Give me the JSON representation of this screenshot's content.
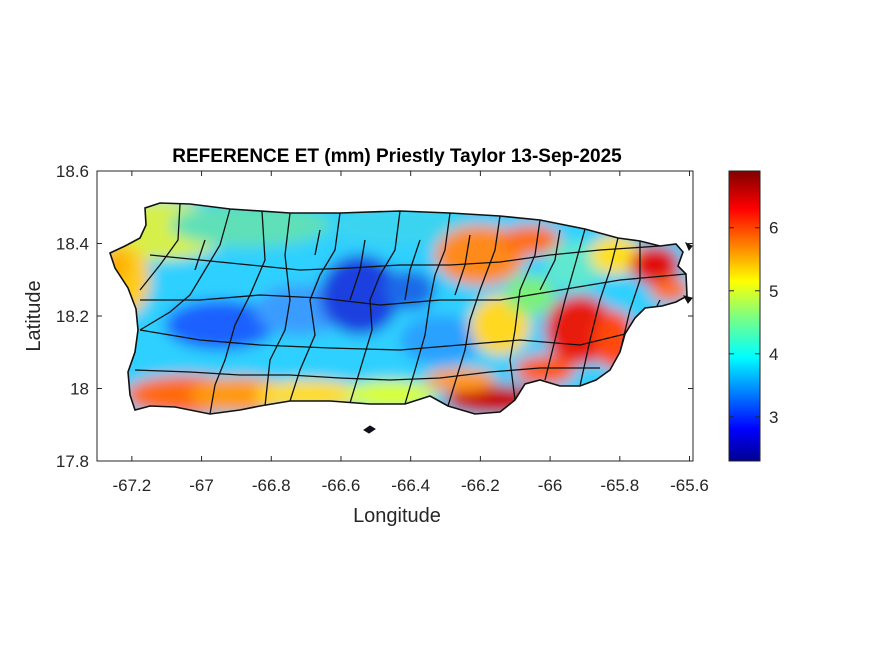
{
  "title": "REFERENCE ET (mm) Priestly Taylor 13-Sep-2025",
  "x_axis": {
    "label": "Longitude",
    "ticks": [
      "-67.2",
      "-67",
      "-66.8",
      "-66.6",
      "-66.4",
      "-66.2",
      "-66",
      "-65.8",
      "-65.6"
    ],
    "range": [
      -67.3,
      -65.59
    ]
  },
  "y_axis": {
    "label": "Latitude",
    "ticks": [
      "18.6",
      "18.4",
      "18.2",
      "18",
      "17.8"
    ],
    "range": [
      17.8,
      18.6
    ]
  },
  "colorbar": {
    "colormap": "jet",
    "range": [
      2.3,
      6.9
    ],
    "ticks": [
      "6",
      "5",
      "4",
      "3"
    ]
  },
  "map": {
    "region": "Puerto Rico",
    "boundaries": "municipalities"
  }
}
